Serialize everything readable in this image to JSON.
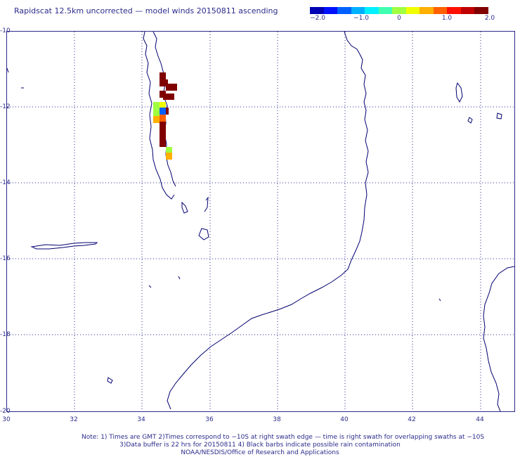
{
  "title": "Rapidscat 12.5km uncorrected — model winds 20150811 ascending",
  "colorbar": {
    "labels": [
      "−2.0",
      "−1.0",
      "0",
      "1.0",
      "2.0"
    ],
    "colors": [
      "#0000b4",
      "#0010ff",
      "#0060ff",
      "#00b0ff",
      "#00f0ff",
      "#40ffb0",
      "#a0ff40",
      "#f0ff00",
      "#ffb000",
      "#ff6000",
      "#ff1000",
      "#c00000",
      "#800000"
    ]
  },
  "axes": {
    "y_labels": [
      "-10",
      "-12",
      "-14",
      "-16",
      "-18",
      "-20"
    ],
    "x_labels": [
      "30",
      "32",
      "34",
      "36",
      "38",
      "40",
      "42",
      "44"
    ]
  },
  "notes": {
    "line1": "Note: 1) Times are GMT 2)Times correspond to −10S at right swath edge — time is right swath for overlapping swaths at −10S",
    "line2": "3)Data buffer is 22 hrs for 20150811 4) Black barbs indicate possible rain contamination",
    "line3": "NOAA/NESDIS/Office of Research and Applications"
  }
}
